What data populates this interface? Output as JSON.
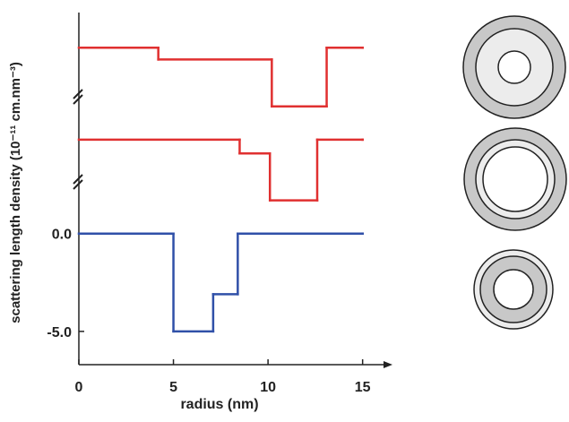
{
  "chart_data": {
    "type": "step",
    "x_label": "radius (nm)",
    "y_label": "scattering length density (10⁻¹¹ cm.nm⁻³)",
    "xlim": [
      0,
      16.2
    ],
    "xticks": [
      0,
      5,
      10,
      15
    ],
    "ylim": [
      -6.7,
      11.3
    ],
    "yticks": [
      {
        "value": 0,
        "label": "0.0"
      },
      {
        "value": -5,
        "label": "-5.0"
      }
    ],
    "series": [
      {
        "color": "#e03030",
        "x": [
          0,
          4.2,
          10.2,
          13.1,
          15
        ],
        "values": [
          9.5,
          8.9,
          6.5,
          9.5,
          9.5
        ]
      },
      {
        "color": "#e03030",
        "x": [
          0,
          8.5,
          10.1,
          12.6,
          15
        ],
        "values": [
          4.8,
          4.1,
          1.7,
          4.8,
          4.8
        ]
      },
      {
        "color": "#3050a8",
        "x": [
          0,
          5.0,
          7.1,
          8.4,
          15
        ],
        "values": [
          0,
          -5.0,
          -3.1,
          0,
          0
        ]
      }
    ]
  }
}
